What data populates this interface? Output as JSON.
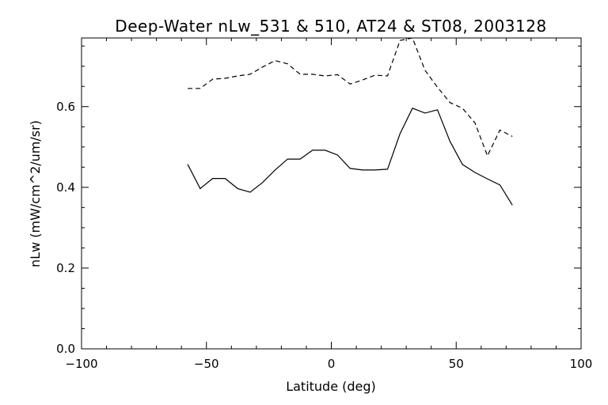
{
  "chart_data": {
    "type": "line",
    "title": "Deep-Water nLw_531 & 510, AT24 & ST08, 2003128",
    "xlabel": "Latitude (deg)",
    "ylabel": "nLw (mW/cm^2/um/sr)",
    "xlim": [
      -100,
      100
    ],
    "ylim": [
      0.0,
      0.77
    ],
    "xticks": [
      -100,
      -50,
      0,
      50,
      100
    ],
    "xtick_labels": [
      "−100",
      "−50",
      "0",
      "50",
      "100"
    ],
    "yticks": [
      0.0,
      0.2,
      0.4,
      0.6
    ],
    "ytick_labels": [
      "0.0",
      "0.2",
      "0.4",
      "0.6"
    ],
    "grid": false,
    "series": [
      {
        "style": "solid",
        "x": [
          -57.5,
          -52.5,
          -47.5,
          -42.5,
          -37.5,
          -32.5,
          -27.5,
          -22.5,
          -17.5,
          -12.5,
          -7.5,
          -2.5,
          2.5,
          7.5,
          12.5,
          17.5,
          22.5,
          27.5,
          32.5,
          37.5,
          42.5,
          47.5,
          52.5,
          57.5,
          62.5,
          67.5,
          72.5
        ],
        "y": [
          0.457,
          0.397,
          0.422,
          0.422,
          0.397,
          0.388,
          0.412,
          0.443,
          0.47,
          0.47,
          0.492,
          0.492,
          0.48,
          0.447,
          0.443,
          0.443,
          0.445,
          0.533,
          0.596,
          0.584,
          0.592,
          0.514,
          0.457,
          0.437,
          0.421,
          0.406,
          0.356
        ]
      },
      {
        "style": "dashed",
        "x": [
          -57.5,
          -52.5,
          -47.5,
          -42.5,
          -37.5,
          -32.5,
          -27.5,
          -22.5,
          -17.5,
          -12.5,
          -7.5,
          -2.5,
          2.5,
          7.5,
          12.5,
          17.5,
          22.5,
          27.5,
          32.5,
          37.5,
          42.5,
          47.5,
          52.5,
          57.5,
          62.5,
          67.5,
          72.5
        ],
        "y": [
          0.645,
          0.645,
          0.668,
          0.67,
          0.676,
          0.68,
          0.698,
          0.714,
          0.706,
          0.68,
          0.68,
          0.676,
          0.679,
          0.656,
          0.666,
          0.678,
          0.676,
          0.764,
          0.77,
          0.69,
          0.648,
          0.61,
          0.596,
          0.56,
          0.478,
          0.542,
          0.526
        ]
      }
    ]
  }
}
